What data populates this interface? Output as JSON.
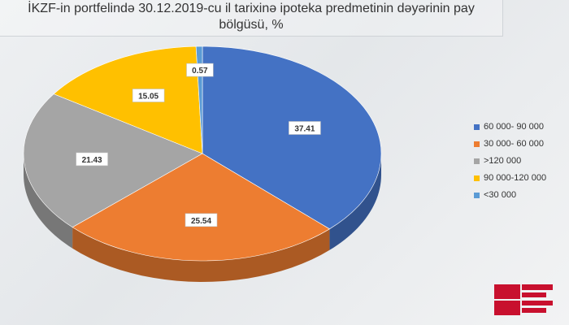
{
  "title_lines": [
    "İKZF-in portfelində 30.12.2019-cu il tarixinə ipoteka predmetinin dəyərinin pay",
    "bölgüsü, %"
  ],
  "chart_data": {
    "type": "pie",
    "title": "İKZF-in portfelində 30.12.2019-cu il tarixinə ipoteka predmetinin dəyərinin pay bölgüsü, %",
    "legend_position": "right",
    "slices": [
      {
        "label": "60 000- 90 000",
        "value": 37.41,
        "color": "#4472c4"
      },
      {
        "label": "30 000- 60 000",
        "value": 25.54,
        "color": "#ed7d31"
      },
      {
        "label": ">120 000",
        "value": 21.43,
        "color": "#a5a5a5"
      },
      {
        "label": "90 000-120 000",
        "value": 15.05,
        "color": "#ffc000"
      },
      {
        "label": "<30 000",
        "value": 0.57,
        "color": "#5b9bd5"
      }
    ],
    "data_labels": [
      "37.41",
      "25.54",
      "21.43",
      "15.05",
      "0.57"
    ]
  },
  "logo": {
    "name": "report-logo",
    "colors": [
      "#c8102e",
      "#ffffff"
    ]
  }
}
